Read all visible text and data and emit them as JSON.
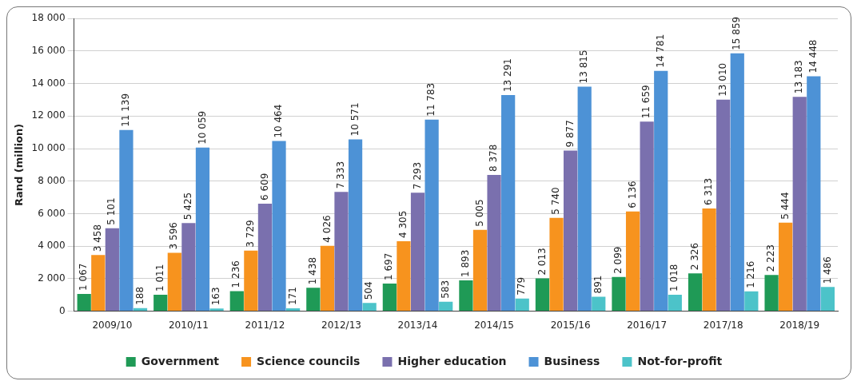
{
  "chart_data": {
    "type": "bar",
    "ylabel": "Rand (million)",
    "categories": [
      "2009/10",
      "2010/11",
      "2011/12",
      "2012/13",
      "2013/14",
      "2014/15",
      "2015/16",
      "2016/17",
      "2017/18",
      "2018/19"
    ],
    "series": [
      {
        "name": "Government",
        "color": "#1f9a56",
        "values": [
          1067,
          1011,
          1236,
          1438,
          1697,
          1893,
          2013,
          2099,
          2326,
          2223
        ],
        "value_labels": [
          "1 067",
          "1 011",
          "1 236",
          "1 438",
          "1 697",
          "1 893",
          "2 013",
          "2 099",
          "2 326",
          "2 223"
        ]
      },
      {
        "name": "Science councils",
        "color": "#f7931e",
        "values": [
          3458,
          3596,
          3729,
          4026,
          4305,
          5005,
          5740,
          6136,
          6313,
          5444
        ],
        "value_labels": [
          "3 458",
          "3 596",
          "3 729",
          "4 026",
          "4 305",
          "5 005",
          "5 740",
          "6 136",
          "6 313",
          "5 444"
        ]
      },
      {
        "name": "Higher education",
        "color": "#7a70ae",
        "values": [
          5101,
          5425,
          6609,
          7333,
          7293,
          8378,
          9877,
          11659,
          13010,
          13183
        ],
        "value_labels": [
          "5 101",
          "5 425",
          "6 609",
          "7 333",
          "7 293",
          "8 378",
          "9 877",
          "11 659",
          "13 010",
          "13 183"
        ]
      },
      {
        "name": "Business",
        "color": "#4d92d6",
        "values": [
          11139,
          10059,
          10464,
          10571,
          11783,
          13291,
          13815,
          14781,
          15859,
          14448
        ],
        "value_labels": [
          "11 139",
          "10 059",
          "10 464",
          "10 571",
          "11 783",
          "13 291",
          "13 815",
          "14 781",
          "15 859",
          "14 448"
        ]
      },
      {
        "name": "Not-for-profit",
        "color": "#4cc3c9",
        "values": [
          188,
          163,
          171,
          504,
          583,
          779,
          891,
          1018,
          1216,
          1486
        ],
        "value_labels": [
          "188",
          "163",
          "171",
          "504",
          "583",
          "779",
          "891",
          "1 018",
          "1 216",
          "1 486"
        ]
      }
    ],
    "ylim": [
      0,
      18000
    ],
    "yticks": [
      {
        "value": 0,
        "label": "0"
      },
      {
        "value": 2000,
        "label": "2 000"
      },
      {
        "value": 4000,
        "label": "4 000"
      },
      {
        "value": 6000,
        "label": "6 000"
      },
      {
        "value": 8000,
        "label": "8 000"
      },
      {
        "value": 10000,
        "label": "10 000"
      },
      {
        "value": 12000,
        "label": "12 000"
      },
      {
        "value": 14000,
        "label": "14 000"
      },
      {
        "value": 16000,
        "label": "16 000"
      },
      {
        "value": 18000,
        "label": "18 000"
      }
    ],
    "grid": "y",
    "legend": "bottom"
  }
}
